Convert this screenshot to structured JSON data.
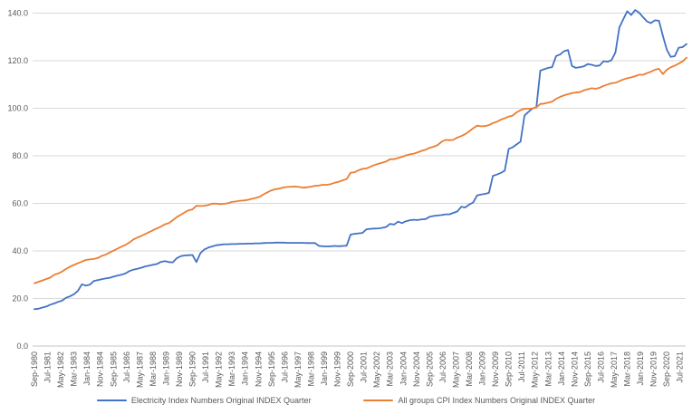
{
  "chart_data": {
    "type": "line",
    "title": "",
    "xlabel": "",
    "ylabel": "",
    "ylim": [
      0,
      140
    ],
    "y_ticks": [
      "0.0",
      "20.0",
      "40.0",
      "60.0",
      "80.0",
      "100.0",
      "120.0",
      "140.0"
    ],
    "grid": true,
    "legend_position": "bottom",
    "x_tick_labels": [
      "Sep-1980",
      "Jul-1981",
      "May-1982",
      "Mar-1983",
      "Jan-1984",
      "Nov-1984",
      "Sep-1985",
      "Jul-1986",
      "May-1987",
      "Mar-1988",
      "Jan-1989",
      "Nov-1989",
      "Sep-1990",
      "Jul-1991",
      "May-1992",
      "Mar-1993",
      "Jan-1994",
      "Nov-1994",
      "Sep-1995",
      "Jul-1996",
      "May-1997",
      "Mar-1998",
      "Jan-1999",
      "Nov-1999",
      "Sep-2000",
      "Jul-2001",
      "May-2002",
      "Mar-2003",
      "Jan-2004",
      "Nov-2004",
      "Sep-2005",
      "Jul-2006",
      "May-2007",
      "Mar-2008",
      "Jan-2009",
      "Nov-2009",
      "Sep-2010",
      "Jul-2011",
      "May-2012",
      "Mar-2013",
      "Jan-2014",
      "Nov-2014",
      "Sep-2015",
      "Jul-2016",
      "May-2017",
      "Mar-2018",
      "Jan-2019",
      "Nov-2019",
      "Sep-2020",
      "Jul-2021"
    ],
    "series": [
      {
        "name": "Electricity Index Numbers Original INDEX Quarter",
        "color": "#4472C4",
        "values": [
          15.5,
          15.7,
          16.2,
          16.6,
          17.4,
          17.9,
          18.6,
          19.1,
          20.3,
          20.9,
          21.8,
          23.2,
          26.0,
          25.4,
          25.8,
          27.3,
          27.7,
          28.1,
          28.4,
          28.7,
          29.2,
          29.6,
          30.0,
          30.5,
          31.5,
          32.1,
          32.5,
          32.9,
          33.5,
          33.8,
          34.2,
          34.5,
          35.4,
          35.7,
          35.3,
          35.2,
          36.9,
          37.8,
          38.1,
          38.2,
          38.3,
          35.3,
          39.1,
          40.6,
          41.4,
          41.9,
          42.4,
          42.6,
          42.8,
          42.8,
          42.9,
          42.9,
          43.0,
          43.0,
          43.1,
          43.1,
          43.2,
          43.2,
          43.3,
          43.4,
          43.4,
          43.5,
          43.5,
          43.5,
          43.4,
          43.4,
          43.4,
          43.4,
          43.4,
          43.3,
          43.3,
          43.3,
          42.1,
          42.0,
          41.9,
          42.0,
          42.1,
          42.0,
          42.1,
          42.2,
          46.9,
          47.2,
          47.4,
          47.6,
          49.1,
          49.3,
          49.4,
          49.5,
          49.7,
          50.1,
          51.4,
          51.1,
          52.3,
          51.7,
          52.5,
          52.9,
          53.1,
          53.0,
          53.3,
          53.4,
          54.4,
          54.7,
          54.9,
          55.1,
          55.4,
          55.4,
          56.0,
          56.6,
          58.6,
          58.3,
          59.5,
          60.4,
          63.3,
          63.7,
          64.0,
          64.4,
          71.6,
          72.1,
          72.8,
          73.8,
          82.9,
          83.6,
          84.8,
          86.0,
          97.0,
          98.5,
          99.9,
          100.4,
          115.8,
          116.4,
          117.0,
          117.3,
          122.0,
          122.6,
          124.0,
          124.5,
          117.8,
          117.0,
          117.3,
          117.6,
          118.6,
          118.3,
          117.8,
          118.0,
          119.8,
          119.6,
          120.2,
          123.5,
          134.0,
          137.5,
          140.8,
          139.2,
          141.3,
          140.2,
          138.3,
          136.5,
          135.8,
          137.0,
          136.8,
          130.5,
          124.6,
          121.6,
          121.9,
          125.5,
          125.7,
          127.0
        ]
      },
      {
        "name": "All groups CPI Index Numbers Original INDEX Quarter",
        "color": "#ED7D31",
        "values": [
          26.4,
          27.0,
          27.6,
          28.2,
          28.8,
          30.0,
          30.5,
          31.3,
          32.4,
          33.4,
          34.1,
          34.8,
          35.5,
          36.2,
          36.4,
          36.6,
          37.0,
          37.9,
          38.4,
          39.3,
          40.1,
          40.9,
          41.8,
          42.5,
          43.5,
          44.8,
          45.6,
          46.3,
          47.1,
          47.9,
          48.7,
          49.5,
          50.2,
          51.2,
          51.7,
          52.9,
          54.2,
          55.2,
          56.2,
          57.1,
          57.5,
          59.0,
          58.9,
          59.0,
          59.3,
          59.9,
          59.9,
          59.7,
          59.8,
          60.1,
          60.6,
          60.8,
          61.1,
          61.2,
          61.5,
          61.9,
          62.3,
          62.8,
          63.8,
          64.7,
          65.5,
          66.0,
          66.2,
          66.7,
          66.9,
          67.0,
          67.1,
          66.9,
          66.6,
          66.8,
          67.0,
          67.4,
          67.5,
          67.8,
          67.8,
          68.1,
          68.7,
          69.1,
          69.7,
          70.2,
          72.9,
          73.1,
          73.9,
          74.5,
          74.7,
          75.4,
          76.1,
          76.6,
          77.1,
          77.6,
          78.6,
          78.6,
          79.1,
          79.5,
          80.2,
          80.6,
          80.9,
          81.5,
          82.1,
          82.6,
          83.4,
          83.8,
          84.5,
          85.9,
          86.7,
          86.6,
          86.7,
          87.7,
          88.3,
          89.1,
          90.3,
          91.6,
          92.7,
          92.4,
          92.5,
          92.9,
          93.8,
          94.3,
          95.2,
          95.8,
          96.5,
          96.9,
          98.3,
          99.2,
          99.8,
          99.8,
          99.9,
          100.4,
          101.8,
          102.0,
          102.4,
          102.8,
          104.0,
          104.8,
          105.4,
          105.9,
          106.4,
          106.6,
          106.8,
          107.5,
          108.0,
          108.4,
          108.2,
          108.6,
          109.4,
          110.0,
          110.5,
          110.7,
          111.4,
          112.1,
          112.6,
          113.0,
          113.5,
          114.1,
          114.1,
          114.8,
          115.4,
          116.2,
          116.6,
          114.4,
          116.2,
          117.2,
          117.9,
          118.8,
          119.7,
          121.3
        ]
      }
    ]
  },
  "colors": {
    "background": "#FFFFFF",
    "gridline": "#D9D9D9",
    "axis_line": "#C6C6C6",
    "tick_text": "#595959",
    "legend_text": "#595959"
  }
}
